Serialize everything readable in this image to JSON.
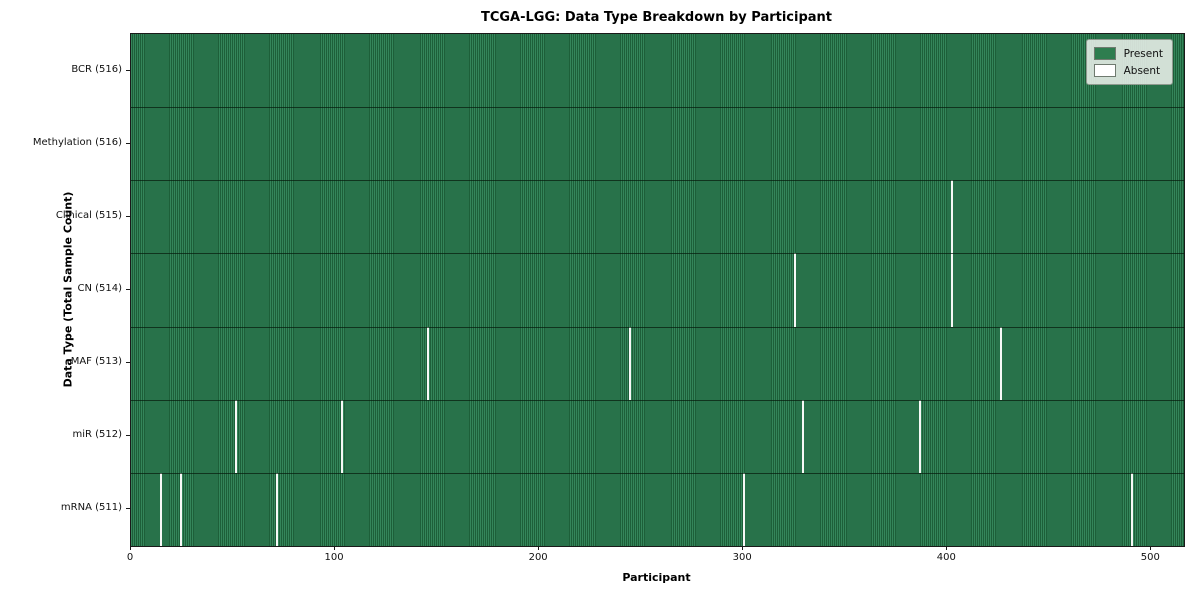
{
  "title": "TCGA-LGG: Data Type Breakdown by Participant",
  "axes": {
    "x_label": "Participant",
    "y_label": "Data Type (Total Sample Count)"
  },
  "legend": {
    "position": "upper right",
    "entries": [
      {
        "label": "Present",
        "color": "#2e7d4f"
      },
      {
        "label": "Absent",
        "color": "#ffffff"
      }
    ]
  },
  "colors": {
    "present_green": "#2e7d4f",
    "stripe_light_green": "#34855a",
    "stripe_dark_green": "#1d5f39",
    "absent_white": "#f7f9f7",
    "row_divider": "rgba(5,25,12,0.7)",
    "axis_spine": "#1a1a1a",
    "legend_bg": "rgba(233,239,233,0.88)"
  },
  "chart_data": {
    "type": "heatmap",
    "title": "TCGA-LGG: Data Type Breakdown by Participant",
    "xlabel": "Participant",
    "ylabel": "Data Type (Total Sample Count)",
    "n_participants": 516,
    "xlim": [
      0,
      516
    ],
    "x_ticks": [
      0,
      100,
      200,
      300,
      400,
      500
    ],
    "grid": false,
    "legend_entries": [
      "Present",
      "Absent"
    ],
    "rows": [
      {
        "label": "BCR (516)",
        "data_type": "BCR",
        "total_samples": 516,
        "absent_participants": []
      },
      {
        "label": "Methylation (516)",
        "data_type": "Methylation",
        "total_samples": 516,
        "absent_participants": []
      },
      {
        "label": "Clinical (515)",
        "data_type": "Clinical",
        "total_samples": 515,
        "absent_participants": [
          402
        ]
      },
      {
        "label": "CN (514)",
        "data_type": "CN",
        "total_samples": 514,
        "absent_participants": [
          325,
          402
        ]
      },
      {
        "label": "MAF (513)",
        "data_type": "MAF",
        "total_samples": 513,
        "absent_participants": [
          145,
          244,
          426
        ]
      },
      {
        "label": "miR (512)",
        "data_type": "miR",
        "total_samples": 512,
        "absent_participants": [
          51,
          103,
          329,
          386
        ]
      },
      {
        "label": "mRNA (511)",
        "data_type": "mRNA",
        "total_samples": 511,
        "absent_participants": [
          14,
          24,
          71,
          300,
          490
        ]
      }
    ]
  }
}
